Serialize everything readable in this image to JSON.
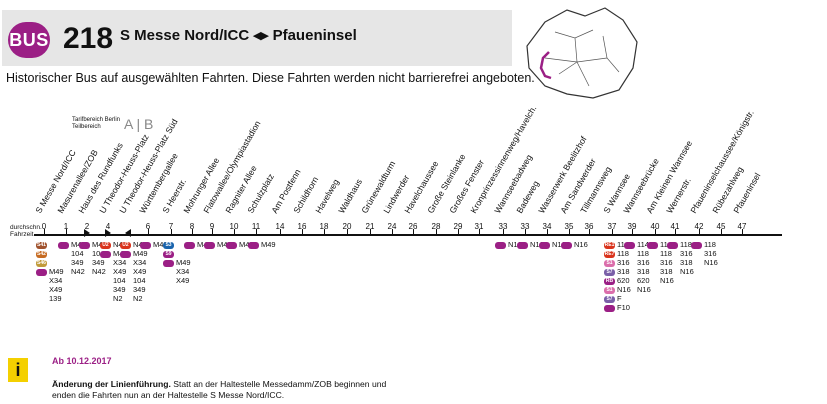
{
  "header": {
    "mode": "BUS",
    "line_number": "218",
    "route": "S Messe Nord/ICC ◂▸ Pfaueninsel",
    "notice": "Historischer Bus auf ausgewählten Fahrten. Diese Fahrten werden nicht barrierefrei angeboten."
  },
  "tariff": {
    "label1": "Tarifbereich Berlin",
    "label2": "Teilbereich",
    "zones": "A | B"
  },
  "fahrzeit_label": {
    "line1": "durchschn.",
    "line2": "Fahrzeit"
  },
  "stops": [
    {
      "name": "S Messe Nord/ICC",
      "minute": "0"
    },
    {
      "name": "Masurenallee/ZOB",
      "minute": "1"
    },
    {
      "name": "Haus des Rundfunks",
      "minute": "2"
    },
    {
      "name": "U Theodor-Heuss-Platz",
      "minute": "4"
    },
    {
      "name": "U Theodor-Heuss-Platz Süd",
      "minute": ""
    },
    {
      "name": "Württembergallee",
      "minute": "6"
    },
    {
      "name": "S Heerstr.",
      "minute": "7"
    },
    {
      "name": "Mohrunger Allee",
      "minute": "8"
    },
    {
      "name": "Flatowallee/Olympiastadion",
      "minute": "9"
    },
    {
      "name": "Ragniter Allee",
      "minute": "10"
    },
    {
      "name": "Schulzplatz",
      "minute": "11"
    },
    {
      "name": "Am Postfenn",
      "minute": "14"
    },
    {
      "name": "Schildhorn",
      "minute": "16"
    },
    {
      "name": "Havelweg",
      "minute": "18"
    },
    {
      "name": "Waldhaus",
      "minute": "20"
    },
    {
      "name": "Grünewaldturm",
      "minute": "21"
    },
    {
      "name": "Lindwerder",
      "minute": "24"
    },
    {
      "name": "Havelchaussee",
      "minute": "26"
    },
    {
      "name": "Große Steinlanke",
      "minute": "28"
    },
    {
      "name": "Großes Fenster",
      "minute": "29"
    },
    {
      "name": "Kronprinzessinnenweg/Havelch.",
      "minute": "31"
    },
    {
      "name": "Wannseebadweg",
      "minute": "33"
    },
    {
      "name": "Badeweg",
      "minute": "33"
    },
    {
      "name": "Wasserwerk Beelitzhof",
      "minute": "34"
    },
    {
      "name": "Am Sandwerder",
      "minute": "35"
    },
    {
      "name": "Tillmannsweg",
      "minute": "36"
    },
    {
      "name": "S Wannsee",
      "minute": "37"
    },
    {
      "name": "Wannseebrücke",
      "minute": "39"
    },
    {
      "name": "Am Kleinen Wannsee",
      "minute": "40"
    },
    {
      "name": "Wernerstr.",
      "minute": "41"
    },
    {
      "name": "Pfaueninselchaussee/Königstr.",
      "minute": "42"
    },
    {
      "name": "Rübezahlweg",
      "minute": "45"
    },
    {
      "name": "Pfaueninsel",
      "minute": "47"
    }
  ],
  "connections": [
    {
      "stop": 0,
      "lines": [
        [
          "S41",
          ""
        ],
        [
          "S42",
          ""
        ],
        [
          "S46",
          ""
        ],
        [
          "bus",
          "M49"
        ],
        [
          "",
          "X34"
        ],
        [
          "",
          "X49"
        ],
        [
          "",
          "139"
        ]
      ]
    },
    {
      "stop": 1,
      "lines": [
        [
          "bus",
          "M49"
        ],
        [
          "",
          "104"
        ],
        [
          "",
          "349"
        ],
        [
          "",
          "N42"
        ]
      ]
    },
    {
      "stop": 2,
      "lines": [
        [
          "bus",
          "M49"
        ],
        [
          "",
          "104"
        ],
        [
          "",
          "349"
        ],
        [
          "",
          "N42"
        ]
      ]
    },
    {
      "stop": 3,
      "lines": [
        [
          "U2",
          "N42"
        ],
        [
          "bus",
          "M49"
        ],
        [
          "",
          "X34"
        ],
        [
          "",
          "X49"
        ],
        [
          "",
          "104"
        ],
        [
          "",
          "349"
        ],
        [
          "",
          "N2"
        ]
      ]
    },
    {
      "stop": 4,
      "lines": [
        [
          "U2",
          "N42"
        ],
        [
          "bus",
          "M49"
        ],
        [
          "",
          "X34"
        ],
        [
          "",
          "X49"
        ],
        [
          "",
          "104"
        ],
        [
          "",
          "349"
        ],
        [
          "",
          "N2"
        ]
      ]
    },
    {
      "stop": 5,
      "lines": [
        [
          "bus",
          "M49"
        ]
      ]
    },
    {
      "stop": 6,
      "lines": [
        [
          "S3",
          ""
        ],
        [
          "S9",
          ""
        ],
        [
          "bus",
          "M49"
        ],
        [
          "",
          "X34"
        ],
        [
          "",
          "X49"
        ]
      ]
    },
    {
      "stop": 7,
      "lines": [
        [
          "bus",
          "M49"
        ]
      ]
    },
    {
      "stop": 8,
      "lines": [
        [
          "bus",
          "M49"
        ]
      ]
    },
    {
      "stop": 9,
      "lines": [
        [
          "bus",
          "M49"
        ]
      ]
    },
    {
      "stop": 10,
      "lines": [
        [
          "bus",
          "M49"
        ]
      ]
    },
    {
      "stop": 21,
      "lines": [
        [
          "bus",
          "N16"
        ]
      ]
    },
    {
      "stop": 22,
      "lines": [
        [
          "bus",
          "N16"
        ]
      ]
    },
    {
      "stop": 23,
      "lines": [
        [
          "bus",
          "N16"
        ]
      ]
    },
    {
      "stop": 24,
      "lines": [
        [
          "bus",
          "N16"
        ]
      ]
    },
    {
      "stop": 26,
      "lines": [
        [
          "RE1",
          "114"
        ],
        [
          "RE7",
          "118"
        ],
        [
          "S1",
          "316"
        ],
        [
          "S7",
          "318"
        ],
        [
          "RB",
          "620"
        ],
        [
          "S1",
          "N16"
        ],
        [
          "S7",
          "F"
        ],
        [
          "bus",
          "F10"
        ]
      ]
    },
    {
      "stop": 27,
      "lines": [
        [
          "bus",
          "114"
        ],
        [
          "",
          "118"
        ],
        [
          "",
          "316"
        ],
        [
          "",
          "318"
        ],
        [
          "",
          "620"
        ],
        [
          "",
          "N16"
        ]
      ]
    },
    {
      "stop": 28,
      "lines": [
        [
          "bus",
          "114"
        ],
        [
          "",
          "118"
        ],
        [
          "",
          "316"
        ],
        [
          "",
          "318"
        ],
        [
          "",
          "N16"
        ]
      ]
    },
    {
      "stop": 29,
      "lines": [
        [
          "bus",
          "118"
        ],
        [
          "",
          "316"
        ],
        [
          "",
          "318"
        ],
        [
          "",
          "N16"
        ]
      ]
    },
    {
      "stop": 30,
      "lines": [
        [
          "bus",
          "118"
        ],
        [
          "",
          "316"
        ],
        [
          "",
          "N16"
        ]
      ]
    }
  ],
  "colors": {
    "bus": "#9b1f85",
    "S41": "#a0522d",
    "S42": "#c66b22",
    "S46": "#c19a3a",
    "U2": "#d9331c",
    "S3": "#1a64ad",
    "S9": "#9b1f85",
    "RE1": "#d9331c",
    "RE7": "#d9331c",
    "S1": "#db6eab",
    "S7": "#7a5fa8",
    "RB": "#9b1f85",
    "F": "#1a7fc1"
  },
  "info": {
    "date": "Ab 10.12.2017",
    "title": "Änderung der Linienführung.",
    "text": " Statt an der Haltestelle Messedamm/ZOB beginnen und enden die Fahrten nun an der Haltestelle S Messe Nord/ICC."
  }
}
